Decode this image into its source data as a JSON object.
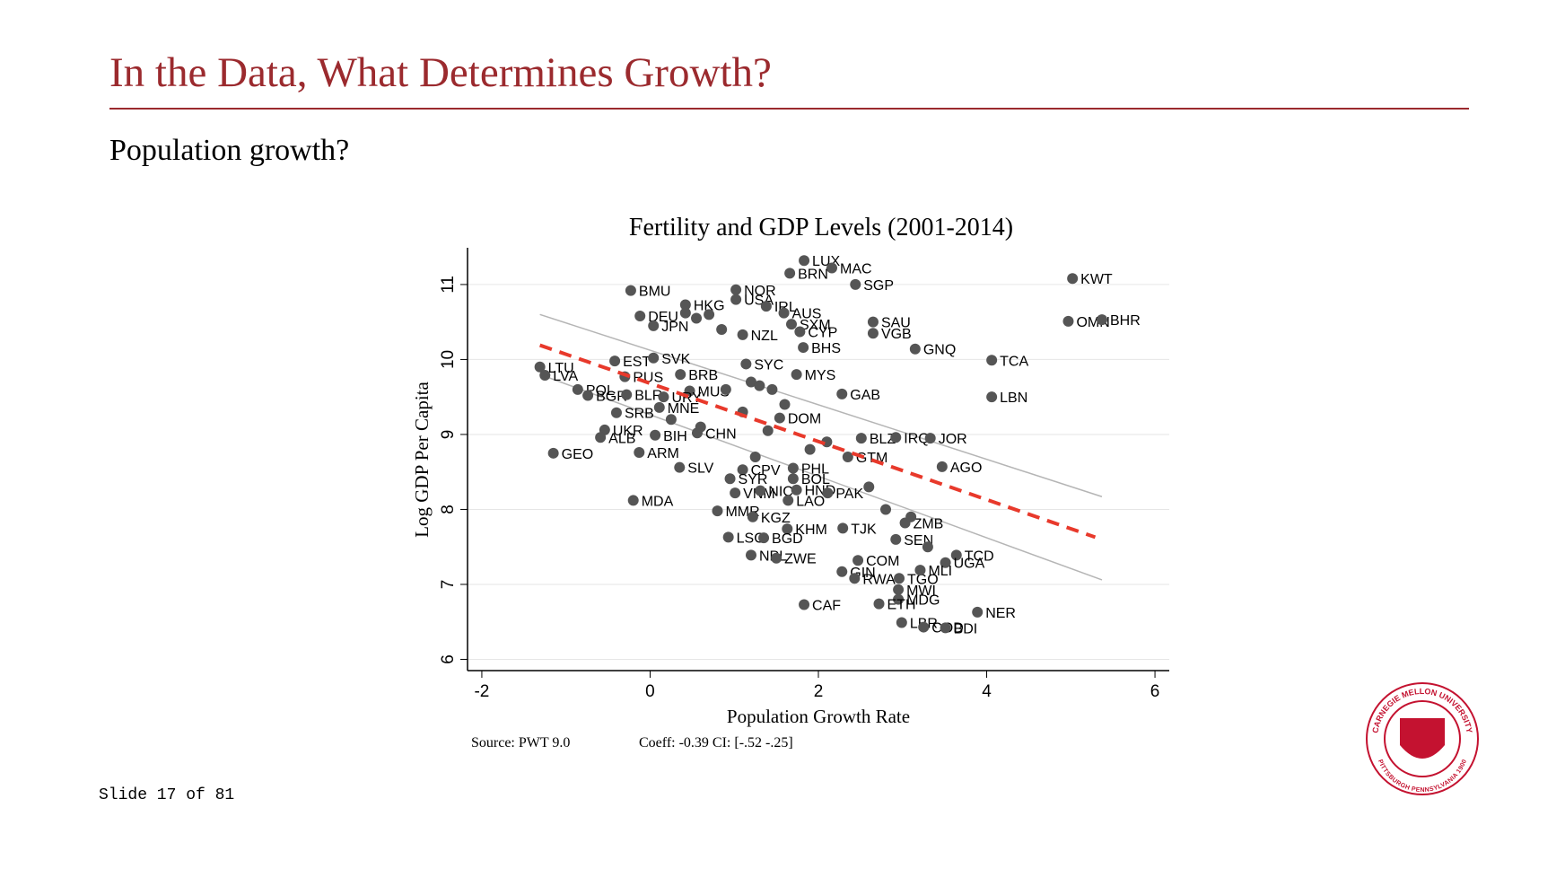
{
  "header": {
    "title": "In the Data, What Determines Growth?",
    "subtitle": "Population growth?"
  },
  "chart_data": {
    "type": "scatter",
    "title": "Fertility and GDP Levels (2001-2014)",
    "x_label": "Population Growth Rate",
    "y_label": "Log GDP Per Capita",
    "notes": [
      "Source: PWT 9.0",
      "Coeff: -0.39 CI: [-.52 -.25]"
    ],
    "xlim": [
      -2.17,
      6.17
    ],
    "ylim": [
      5.85,
      11.49
    ],
    "xticks": [
      -2,
      0,
      2,
      4,
      6
    ],
    "yticks": [
      6,
      7,
      8,
      9,
      10,
      11
    ],
    "grid": true,
    "series": [
      {
        "color": "#555555",
        "labels": [
          "LUX",
          "MAC",
          "BRN",
          "KWT",
          "SGP",
          "BMU",
          "NOR",
          "USA",
          "IRL",
          "AUS",
          "HKG",
          "DEU",
          "SXM",
          "SAU",
          "OMN",
          "BHR",
          "VGB",
          "JPN",
          "NZL",
          "CYP",
          "BHS",
          "GNQ",
          "TCA",
          "LTU",
          "LVA",
          "EST",
          "SVK",
          "SYC",
          "MYS",
          "BRB",
          "RUS",
          "LBN",
          "GAB",
          "POL",
          "BGR",
          "BLR",
          "MUS",
          "URY",
          "SRB",
          "MNE",
          "DOM",
          "UKR",
          "ALB",
          "BIH",
          "CHN",
          "BLZ",
          "IRQ",
          "JOR",
          "GEO",
          "ARM",
          "GTM",
          "AGO",
          "SLV",
          "CPV",
          "PHL",
          "BOL",
          "SYR",
          "VNM",
          "NIC",
          "HND",
          "LAO",
          "PAK",
          "MDA",
          "MMR",
          "KGZ",
          "KHM",
          "TJK",
          "ZMB",
          "SEN",
          "LSO",
          "BGD",
          "NPL",
          "ZWE",
          "COM",
          "TCD",
          "UGA",
          "GIN",
          "RWA",
          "TGO",
          "MLI",
          "MWI",
          "MDG",
          "ETH",
          "CAF",
          "NER",
          "LBR",
          "COD",
          "BDI",
          null,
          null,
          null,
          null,
          null,
          null,
          null,
          null,
          null,
          null,
          null,
          null,
          null,
          null,
          null,
          null,
          null,
          null,
          null,
          null
        ],
        "x": [
          1.83,
          2.16,
          1.66,
          5.02,
          2.44,
          -0.23,
          1.02,
          1.02,
          1.38,
          1.59,
          0.42,
          -0.12,
          1.68,
          2.65,
          4.97,
          5.37,
          2.65,
          0.04,
          1.1,
          1.78,
          1.82,
          3.15,
          4.06,
          -1.31,
          -1.25,
          -0.42,
          0.04,
          1.14,
          1.74,
          0.36,
          -0.3,
          4.06,
          2.28,
          -0.86,
          -0.74,
          -0.28,
          0.47,
          0.16,
          -0.4,
          0.11,
          1.54,
          -0.54,
          -0.59,
          0.06,
          0.56,
          2.51,
          2.92,
          3.33,
          -1.15,
          -0.13,
          2.35,
          3.47,
          0.35,
          1.1,
          1.7,
          1.7,
          0.95,
          1.01,
          1.31,
          1.74,
          1.64,
          2.11,
          -0.2,
          0.8,
          1.22,
          1.63,
          2.29,
          3.03,
          2.92,
          0.93,
          1.35,
          1.2,
          1.5,
          2.47,
          3.64,
          3.51,
          2.28,
          2.43,
          2.96,
          3.21,
          2.95,
          2.95,
          2.72,
          1.83,
          3.89,
          2.99,
          3.25,
          3.51,
          0.42,
          0.55,
          0.7,
          0.85,
          1.2,
          1.3,
          1.45,
          1.6,
          0.25,
          0.6,
          1.1,
          1.4,
          1.9,
          2.1,
          2.6,
          2.8,
          3.1,
          3.3,
          1.25,
          0.9
        ],
        "values": [
          11.32,
          11.22,
          11.15,
          11.08,
          11.0,
          10.92,
          10.93,
          10.8,
          10.71,
          10.62,
          10.73,
          10.58,
          10.47,
          10.5,
          10.51,
          10.53,
          10.35,
          10.45,
          10.33,
          10.37,
          10.16,
          10.14,
          9.99,
          9.9,
          9.79,
          9.98,
          10.02,
          9.94,
          9.8,
          9.8,
          9.77,
          9.5,
          9.54,
          9.6,
          9.52,
          9.53,
          9.58,
          9.5,
          9.29,
          9.36,
          9.22,
          9.06,
          8.96,
          8.99,
          9.02,
          8.95,
          8.96,
          8.95,
          8.75,
          8.76,
          8.7,
          8.57,
          8.56,
          8.53,
          8.55,
          8.41,
          8.41,
          8.22,
          8.25,
          8.26,
          8.12,
          8.22,
          8.12,
          7.98,
          7.9,
          7.74,
          7.75,
          7.82,
          7.6,
          7.63,
          7.62,
          7.39,
          7.35,
          7.32,
          7.39,
          7.29,
          7.17,
          7.08,
          7.08,
          7.19,
          6.93,
          6.8,
          6.74,
          6.73,
          6.63,
          6.49,
          6.43,
          6.42,
          10.62,
          10.55,
          10.6,
          10.4,
          9.7,
          9.65,
          9.6,
          9.4,
          9.2,
          9.1,
          9.3,
          9.05,
          8.8,
          8.9,
          8.3,
          8.0,
          7.9,
          7.5,
          8.7,
          9.6
        ]
      }
    ],
    "fit": {
      "x": [
        -1.31,
        5.29
      ],
      "values": [
        10.19,
        7.63
      ],
      "color": "#e8392b"
    },
    "ci_lines": [
      {
        "x": [
          -1.31,
          5.37
        ],
        "values": [
          10.6,
          8.17
        ],
        "color": "#b5b5b5"
      },
      {
        "x": [
          -1.31,
          5.37
        ],
        "values": [
          9.8,
          7.06
        ],
        "color": "#b5b5b5"
      }
    ]
  },
  "footer": {
    "slide_number": "Slide 17 of 81"
  },
  "logo": {
    "top": "CARNEGIE MELLON UNIVERSITY",
    "bottom": "PITTSBURGH PENNSYLVANIA 1900"
  }
}
